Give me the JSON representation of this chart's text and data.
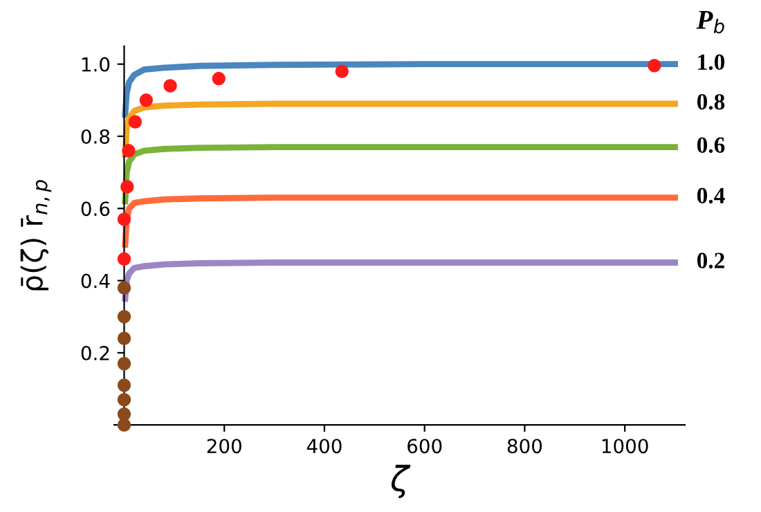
{
  "chart_data": {
    "type": "line",
    "xlabel": "ζ",
    "ylabel": "ρ̄(ζ) r̄$_{n,p}$",
    "legend_title": "P$_{b}$",
    "xlim": [
      -20,
      1120
    ],
    "ylim": [
      0,
      1.05
    ],
    "xticks": [
      200,
      400,
      600,
      800,
      1000
    ],
    "yticks": [
      0.2,
      0.4,
      0.6,
      0.8,
      {
        "value": 1.0,
        "label": "1.0"
      }
    ],
    "grid": false,
    "legend": "right",
    "marker": "none",
    "line_style": "solid",
    "series": [
      {
        "name": "1.0",
        "color": "#4a86c0",
        "x": [
          2,
          5,
          10,
          20,
          40,
          80,
          150,
          300,
          600,
          1100
        ],
        "values": [
          0.86,
          0.92,
          0.95,
          0.97,
          0.985,
          0.99,
          0.995,
          0.998,
          1.0,
          1.0
        ]
      },
      {
        "name": "0.8",
        "color": "#f5a623",
        "x": [
          2,
          5,
          10,
          20,
          40,
          80,
          150,
          300,
          600,
          1100
        ],
        "values": [
          0.75,
          0.82,
          0.85,
          0.87,
          0.88,
          0.885,
          0.888,
          0.89,
          0.89,
          0.89
        ]
      },
      {
        "name": "0.6",
        "color": "#7bb23a",
        "x": [
          2,
          5,
          10,
          20,
          40,
          80,
          150,
          300,
          600,
          1100
        ],
        "values": [
          0.62,
          0.7,
          0.73,
          0.75,
          0.76,
          0.765,
          0.768,
          0.77,
          0.77,
          0.77
        ]
      },
      {
        "name": "0.4",
        "color": "#ff6a3d",
        "x": [
          2,
          5,
          10,
          20,
          40,
          80,
          150,
          300,
          600,
          1100
        ],
        "values": [
          0.5,
          0.57,
          0.6,
          0.615,
          0.62,
          0.625,
          0.628,
          0.63,
          0.63,
          0.63
        ]
      },
      {
        "name": "0.2",
        "color": "#9b86c4",
        "x": [
          2,
          5,
          10,
          20,
          40,
          80,
          150,
          300,
          600,
          1100
        ],
        "values": [
          0.35,
          0.4,
          0.42,
          0.435,
          0.44,
          0.445,
          0.448,
          0.45,
          0.45,
          0.45
        ]
      },
      {
        "type": "scatter",
        "color": "#ff1a1a",
        "marker": "circle",
        "x": [
          1059,
          435,
          189,
          92,
          44,
          22,
          9,
          6,
          0,
          0
        ],
        "values": [
          0.996,
          0.98,
          0.96,
          0.94,
          0.9,
          0.84,
          0.76,
          0.66,
          0.57,
          0.46
        ]
      },
      {
        "type": "scatter",
        "color": "#8b4a1c",
        "marker": "circle",
        "x": [
          0,
          0,
          0,
          0,
          0,
          0,
          0,
          0
        ],
        "values": [
          0.38,
          0.3,
          0.24,
          0.17,
          0.11,
          0.07,
          0.03,
          0.0
        ]
      }
    ]
  }
}
